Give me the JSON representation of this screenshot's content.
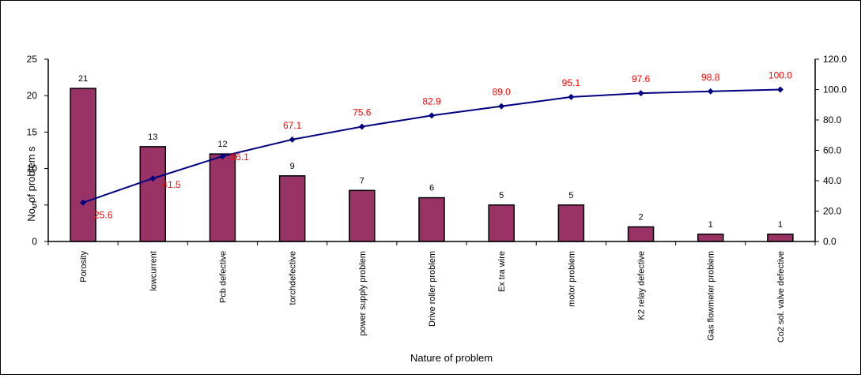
{
  "chart_data": {
    "type": "bar",
    "title": "",
    "xlabel": "Nature of problem",
    "ylabel": "No. of problem s",
    "categories": [
      "Porosity",
      "lowcurrent",
      "Pcb defective",
      "torchdefective",
      "power supply problem",
      "Drive roller problem",
      "Ex tra wire",
      "motor problem",
      "K2 relay defective",
      "Gas flowmeter problem",
      "Co2 sol. valve defective"
    ],
    "series": [
      {
        "type": "bar",
        "axis": "left",
        "values": [
          21,
          13,
          12,
          9,
          7,
          6,
          5,
          5,
          2,
          1,
          1
        ],
        "labels": [
          "21",
          "13",
          "12",
          "9",
          "7",
          "6",
          "5",
          "5",
          "2",
          "1",
          "1"
        ],
        "color": "#993366"
      },
      {
        "type": "line",
        "axis": "right",
        "values": [
          25.6,
          41.5,
          56.1,
          67.1,
          75.6,
          82.9,
          89.0,
          95.1,
          97.6,
          98.8,
          100.0
        ],
        "labels": [
          "25.6",
          "41.5",
          "56.1",
          "67.1",
          "75.6",
          "82.9",
          "89.0",
          "95.1",
          "97.6",
          "98.8",
          "100.0"
        ],
        "color": "#000080",
        "label_color": "#ff0000"
      }
    ],
    "y_left": {
      "ylim": [
        0,
        25
      ],
      "ticks": [
        "0",
        "5",
        "10",
        "15",
        "20",
        "25"
      ]
    },
    "y_right": {
      "ylim": [
        0,
        120
      ],
      "ticks": [
        "0.0",
        "20.0",
        "40.0",
        "60.0",
        "80.0",
        "100.0",
        "120.0"
      ]
    },
    "grid": false,
    "legend": "none"
  }
}
